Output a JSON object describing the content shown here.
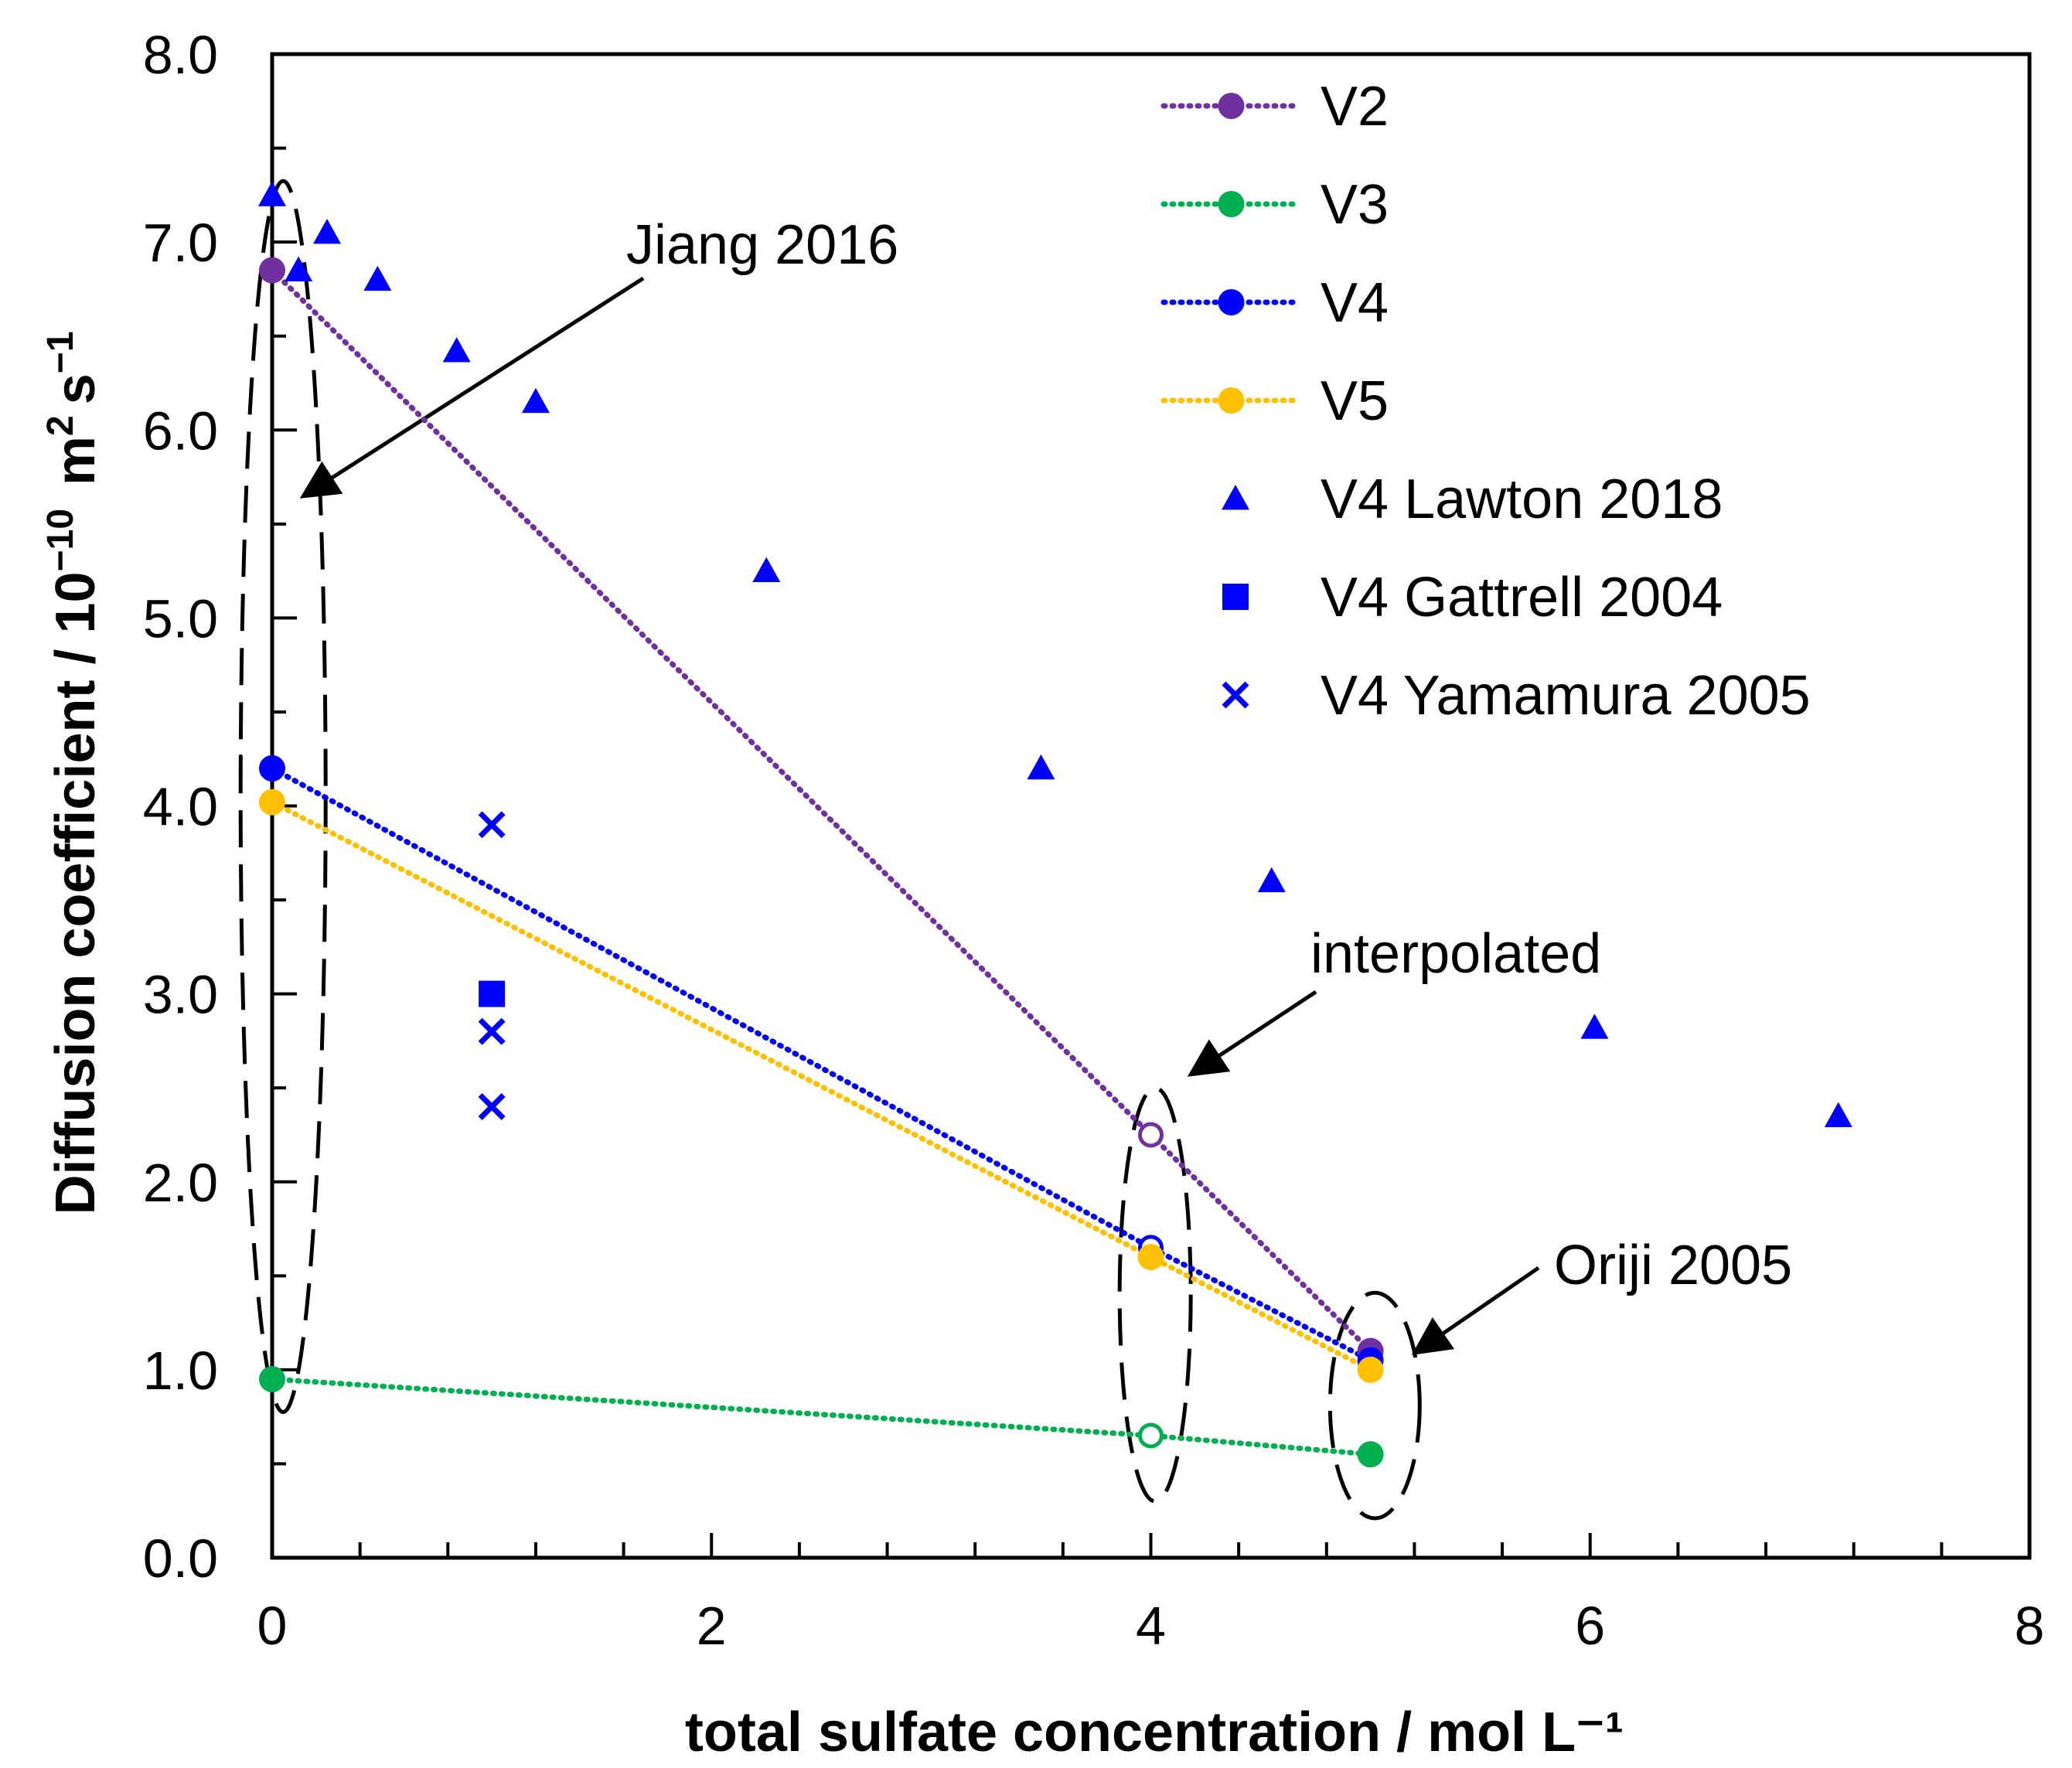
{
  "chart_data": {
    "type": "scatter",
    "xlabel": "total sulfate concentration / mol L⁻¹",
    "ylabel_main": "Diffusion coefficient / 10",
    "ylabel_exp": "−10",
    "ylabel_unit": "m",
    "ylabel_unit_exp": "2",
    "ylabel_s": "s",
    "ylabel_s_exp": "−1",
    "xlim": [
      0,
      8
    ],
    "ylim": [
      0,
      8
    ],
    "xticks": [
      "0",
      "2",
      "4",
      "6",
      "8"
    ],
    "yticks": [
      "0.0",
      "1.0",
      "2.0",
      "3.0",
      "4.0",
      "5.0",
      "6.0",
      "7.0",
      "8.0"
    ],
    "grid": false,
    "legend_position": "top-right",
    "series": [
      {
        "name": "V2",
        "color": "#7030a0",
        "style": "dotted-line-circle",
        "x": [
          0,
          4,
          5
        ],
        "y": [
          6.85,
          2.25,
          1.1
        ],
        "hollow": [
          false,
          true,
          false
        ]
      },
      {
        "name": "V3",
        "color": "#00b050",
        "style": "dotted-line-circle",
        "x": [
          0,
          4,
          5
        ],
        "y": [
          0.95,
          0.65,
          0.55
        ],
        "hollow": [
          false,
          true,
          false
        ]
      },
      {
        "name": "V4",
        "color": "#0000ff",
        "style": "dotted-line-circle",
        "x": [
          0,
          4,
          5
        ],
        "y": [
          4.2,
          1.65,
          1.05
        ],
        "hollow": [
          false,
          true,
          false
        ]
      },
      {
        "name": "V5",
        "color": "#ffc000",
        "style": "dotted-line-circle",
        "x": [
          0,
          4,
          5
        ],
        "y": [
          4.02,
          1.6,
          1.0
        ],
        "hollow": [
          false,
          false,
          false
        ]
      },
      {
        "name": "V4 Lawton 2018",
        "color": "#0000ff",
        "style": "triangle",
        "x": [
          0,
          0.12,
          0.25,
          0.48,
          0.84,
          1.2,
          2.25,
          3.5,
          4.55,
          6.02,
          7.13
        ],
        "y": [
          7.25,
          6.85,
          7.05,
          6.8,
          6.42,
          6.15,
          5.25,
          4.2,
          3.6,
          2.82,
          2.35
        ]
      },
      {
        "name": "V4 Gattrell 2004",
        "color": "#0000ff",
        "style": "square",
        "x": [
          1
        ],
        "y": [
          3.0
        ]
      },
      {
        "name": "V4 Yamamura 2005",
        "color": "#0000ff",
        "style": "x",
        "x": [
          1,
          1,
          1
        ],
        "y": [
          3.9,
          2.8,
          2.4
        ]
      }
    ],
    "annotations": [
      {
        "text": "Jiang 2016"
      },
      {
        "text": "interpolated"
      },
      {
        "text": "Oriji 2005"
      }
    ]
  }
}
